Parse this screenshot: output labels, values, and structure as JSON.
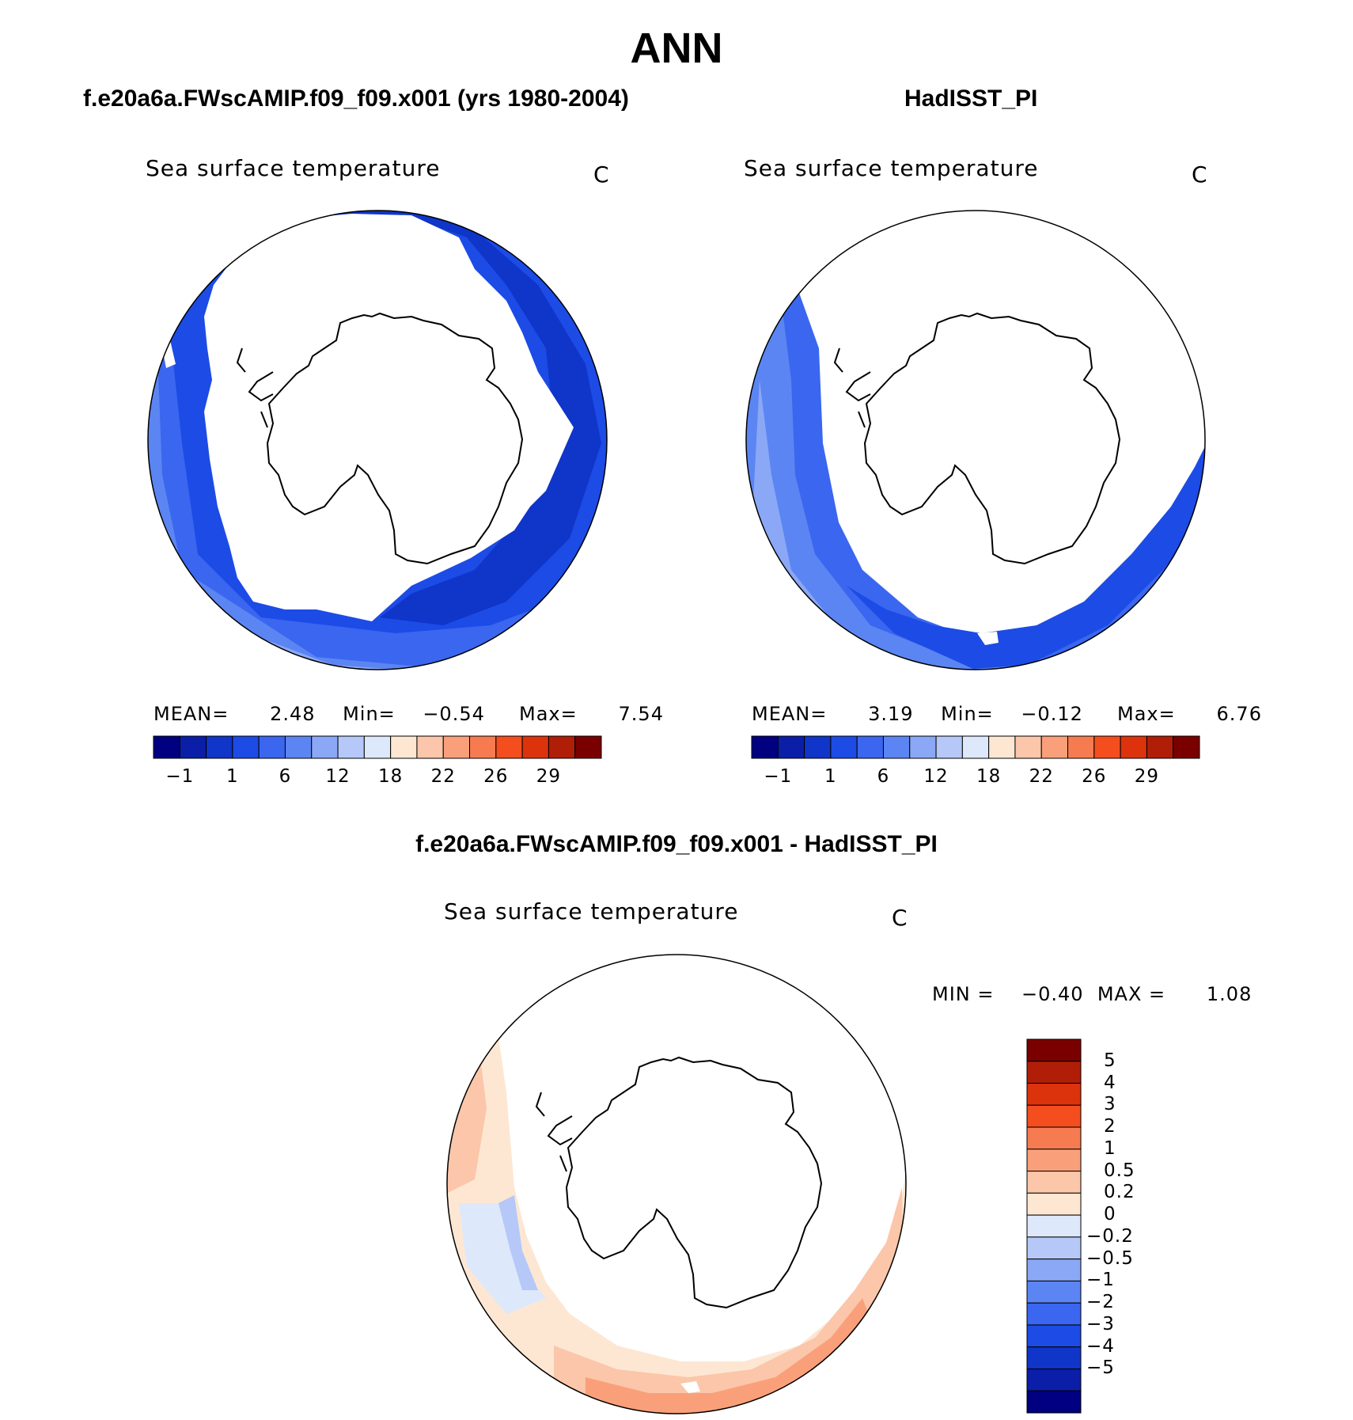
{
  "title": "ANN",
  "panels": [
    {
      "case_title": "f.e20a6a.FWscAMIP.f09_f09.x001 (yrs 1980-2004)",
      "variable": "Sea surface temperature",
      "units": "C",
      "stats": {
        "mean_label": "MEAN=",
        "mean": "2.48",
        "min_label": "Min=",
        "min": "−0.54",
        "max_label": "Max=",
        "max": "7.54"
      }
    },
    {
      "case_title": "HadISST_PI",
      "variable": "Sea surface temperature",
      "units": "C",
      "stats": {
        "mean_label": "MEAN=",
        "mean": "3.19",
        "min_label": "Min=",
        "min": "−0.12",
        "max_label": "Max=",
        "max": "6.76"
      }
    },
    {
      "case_title": "f.e20a6a.FWscAMIP.f09_f09.x001 - HadISST_PI",
      "variable": "Sea surface temperature",
      "units": "C",
      "stats": {
        "min_label": "MIN =",
        "min": "−0.40",
        "max_label": "MAX =",
        "max": "1.08"
      }
    }
  ],
  "colorbar_abs": {
    "colors": [
      "#000080",
      "#0a1ea8",
      "#0f35c9",
      "#1c4be6",
      "#3a66f0",
      "#5b85f2",
      "#8aa8f5",
      "#b5c8f8",
      "#dde8fb",
      "#fde7d3",
      "#fbc6a9",
      "#f9a07a",
      "#f77b50",
      "#f44d1e",
      "#dc330d",
      "#b01e08",
      "#7a0000"
    ],
    "tick_labels": [
      "−1",
      "1",
      "6",
      "12",
      "18",
      "22",
      "26",
      "29"
    ]
  },
  "colorbar_diff": {
    "colors": [
      "#7a0000",
      "#b01e08",
      "#dc330d",
      "#f44d1e",
      "#f77b50",
      "#f9a07a",
      "#fbc6a9",
      "#fde7d3",
      "#dde8fb",
      "#b5c8f8",
      "#8aa8f5",
      "#5b85f2",
      "#3a66f0",
      "#1c4be6",
      "#0f35c9",
      "#0a1ea8",
      "#000080"
    ],
    "tick_labels": [
      "5",
      "4",
      "3",
      "2",
      "1",
      "0.5",
      "0.2",
      "0",
      "−0.2",
      "−0.5",
      "−1",
      "−2",
      "−3",
      "−4",
      "−5"
    ]
  }
}
